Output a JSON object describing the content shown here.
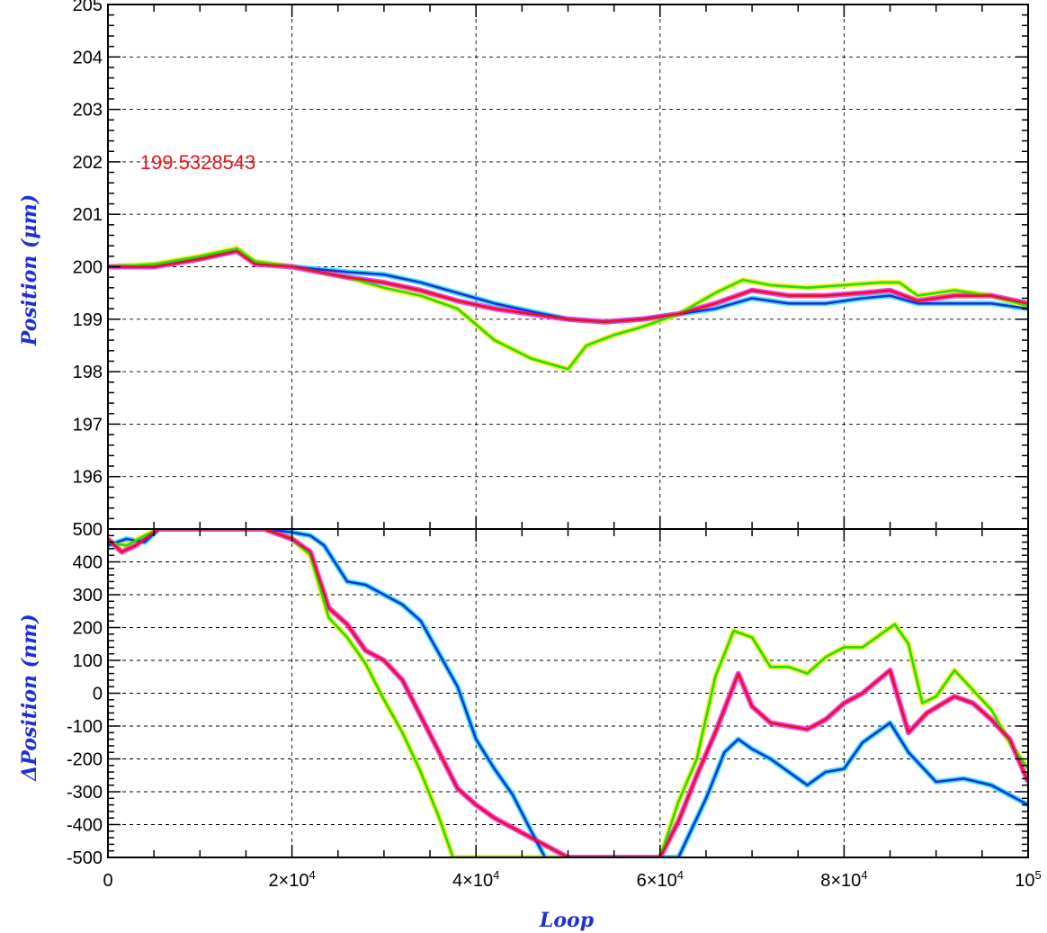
{
  "chart_data": [
    {
      "type": "line",
      "panel": "top",
      "ylabel": "Position (μm)",
      "xlim": [
        0,
        100000
      ],
      "ylim": [
        195,
        205
      ],
      "yticks": [
        "196",
        "197",
        "198",
        "199",
        "200",
        "201",
        "202",
        "203",
        "204",
        "205"
      ],
      "grid": true,
      "annotations": [
        {
          "text": "199.5328543",
          "color": "#e8141b"
        }
      ],
      "series": [
        {
          "color": "#1f2fd6",
          "halo": "#22e4f0",
          "x": [
            0,
            5000,
            10000,
            14000,
            16000,
            20000,
            23000,
            26000,
            30000,
            34000,
            38000,
            42000,
            46000,
            50000,
            54000,
            58000,
            62000,
            66000,
            70000,
            74000,
            78000,
            82000,
            85000,
            88000,
            92000,
            96000,
            100000
          ],
          "y": [
            200.0,
            200.0,
            200.15,
            200.3,
            200.1,
            200.0,
            199.95,
            199.9,
            199.85,
            199.7,
            199.5,
            199.3,
            199.15,
            199.0,
            198.95,
            199.0,
            199.1,
            199.2,
            199.4,
            199.3,
            199.3,
            199.4,
            199.45,
            199.3,
            199.3,
            199.3,
            199.2
          ]
        },
        {
          "color": "#22dd11",
          "halo": "#f5ee11",
          "x": [
            0,
            5000,
            10000,
            14000,
            16000,
            20000,
            23000,
            26000,
            30000,
            34000,
            38000,
            42000,
            46000,
            48000,
            50000,
            52000,
            55000,
            58000,
            62000,
            66000,
            69000,
            72000,
            76000,
            80000,
            84000,
            86000,
            88000,
            92000,
            96000,
            100000
          ],
          "y": [
            200.0,
            200.05,
            200.2,
            200.35,
            200.1,
            200.0,
            199.9,
            199.8,
            199.6,
            199.45,
            199.2,
            198.6,
            198.25,
            198.15,
            198.05,
            198.5,
            198.7,
            198.85,
            199.1,
            199.5,
            199.75,
            199.65,
            199.6,
            199.65,
            199.7,
            199.7,
            199.45,
            199.55,
            199.45,
            199.25
          ]
        },
        {
          "color": "#e8141b",
          "halo": "#f032ee",
          "x": [
            0,
            5000,
            10000,
            14000,
            16000,
            20000,
            23000,
            26000,
            30000,
            34000,
            38000,
            42000,
            46000,
            50000,
            54000,
            58000,
            62000,
            66000,
            70000,
            74000,
            78000,
            82000,
            85000,
            88000,
            92000,
            96000,
            100000
          ],
          "y": [
            200.0,
            200.0,
            200.15,
            200.3,
            200.05,
            200.0,
            199.9,
            199.8,
            199.7,
            199.55,
            199.35,
            199.2,
            199.1,
            199.0,
            198.95,
            199.0,
            199.1,
            199.3,
            199.55,
            199.45,
            199.45,
            199.5,
            199.55,
            199.35,
            199.45,
            199.45,
            199.3
          ]
        }
      ]
    },
    {
      "type": "line",
      "panel": "bottom",
      "xlabel": "Loop",
      "ylabel": "ΔPosition (nm)",
      "xlim": [
        0,
        100000
      ],
      "ylim": [
        -500,
        500
      ],
      "yticks": [
        "-500",
        "-400",
        "-300",
        "-200",
        "-100",
        "0",
        "100",
        "200",
        "300",
        "400",
        "500"
      ],
      "xticks": [
        {
          "value": 0,
          "base": "0",
          "exp": ""
        },
        {
          "value": 20000,
          "base": "2×10",
          "exp": "4"
        },
        {
          "value": 40000,
          "base": "4×10",
          "exp": "4"
        },
        {
          "value": 60000,
          "base": "6×10",
          "exp": "4"
        },
        {
          "value": 80000,
          "base": "8×10",
          "exp": "4"
        },
        {
          "value": 100000,
          "base": "10",
          "exp": "5"
        }
      ],
      "grid": true,
      "series": [
        {
          "color": "#1f2fd6",
          "halo": "#22e4f0",
          "x": [
            0,
            2000,
            4000,
            5500,
            17000,
            20000,
            22000,
            23500,
            26000,
            28000,
            30000,
            32000,
            34000,
            36000,
            38000,
            40000,
            42000,
            44000,
            46000,
            47500,
            62000,
            63000,
            65000,
            67000,
            68500,
            70000,
            72000,
            74000,
            76000,
            78000,
            80000,
            82000,
            85000,
            87000,
            90000,
            93000,
            96000,
            98000,
            100000
          ],
          "y": [
            450,
            470,
            460,
            500,
            500,
            490,
            480,
            450,
            340,
            330,
            300,
            270,
            220,
            120,
            20,
            -140,
            -230,
            -310,
            -420,
            -500,
            -500,
            -440,
            -320,
            -180,
            -140,
            -170,
            -200,
            -240,
            -280,
            -240,
            -230,
            -150,
            -90,
            -180,
            -270,
            -260,
            -280,
            -310,
            -340
          ]
        },
        {
          "color": "#22dd11",
          "halo": "#f5ee11",
          "x": [
            0,
            2000,
            4000,
            5500,
            17000,
            20000,
            22000,
            24000,
            26000,
            28000,
            30000,
            32000,
            34000,
            36000,
            37500,
            60000,
            62000,
            64000,
            66000,
            68000,
            70000,
            72000,
            74000,
            76000,
            78000,
            80000,
            82000,
            84000,
            85500,
            87000,
            88500,
            90000,
            92000,
            94000,
            96000,
            98000,
            100000
          ],
          "y": [
            460,
            450,
            480,
            500,
            500,
            470,
            420,
            230,
            170,
            90,
            -20,
            -120,
            -240,
            -380,
            -500,
            -500,
            -330,
            -200,
            50,
            190,
            170,
            80,
            80,
            60,
            110,
            140,
            140,
            180,
            210,
            150,
            -30,
            -10,
            70,
            10,
            -50,
            -150,
            -230
          ]
        },
        {
          "color": "#e8141b",
          "halo": "#f032ee",
          "x": [
            0,
            1500,
            3000,
            4500,
            5500,
            17000,
            20000,
            22000,
            24000,
            26000,
            28000,
            30000,
            32000,
            34000,
            36000,
            38000,
            40000,
            42000,
            44000,
            46000,
            48000,
            50000,
            60000,
            62000,
            64000,
            66000,
            68500,
            70000,
            72000,
            74000,
            76000,
            78000,
            80000,
            82000,
            85000,
            87000,
            89000,
            92000,
            94000,
            96000,
            98000,
            100000
          ],
          "y": [
            470,
            430,
            450,
            480,
            500,
            500,
            470,
            430,
            260,
            210,
            130,
            100,
            40,
            -70,
            -180,
            -290,
            -340,
            -380,
            -410,
            -440,
            -470,
            -500,
            -500,
            -390,
            -250,
            -120,
            60,
            -40,
            -90,
            -100,
            -110,
            -80,
            -30,
            0,
            70,
            -120,
            -60,
            -10,
            -30,
            -80,
            -140,
            -270
          ]
        }
      ]
    }
  ]
}
